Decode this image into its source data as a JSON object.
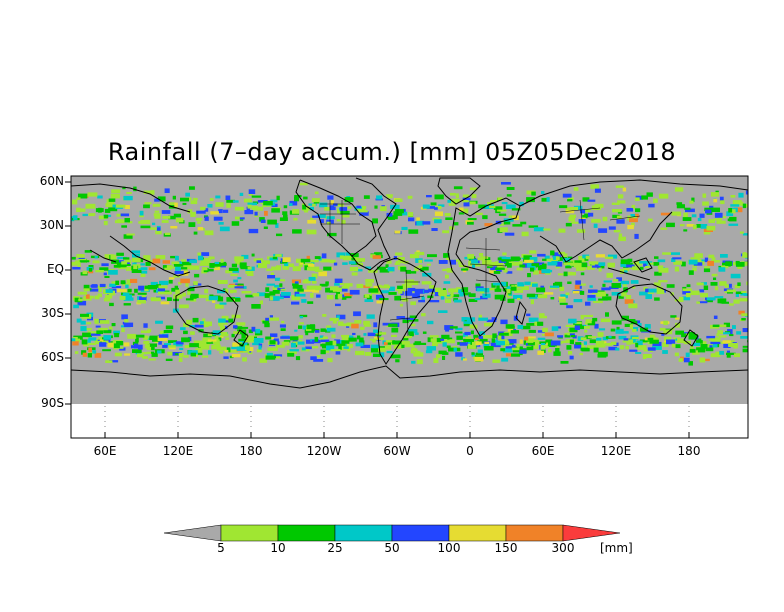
{
  "map": {
    "title": "Rainfall (7–day accum.) [mm] 05Z05Dec2018",
    "lat_labels": [
      "60N",
      "30N",
      "EQ",
      "30S",
      "60S",
      "90S"
    ],
    "lon_labels": [
      "60E",
      "120E",
      "180",
      "120W",
      "60W",
      "0",
      "60E",
      "120E",
      "180"
    ],
    "colors": {
      "land": "#a9a9a9",
      "coast": "#000000"
    }
  },
  "colorbar": {
    "unit": "[mm]",
    "labels": [
      "5",
      "10",
      "25",
      "50",
      "100",
      "150",
      "300"
    ],
    "colors": [
      "#a9a9a9",
      "#a0e632",
      "#00c800",
      "#00c8c8",
      "#2346ff",
      "#e6dc32",
      "#f08228",
      "#fa3c3c"
    ]
  }
}
